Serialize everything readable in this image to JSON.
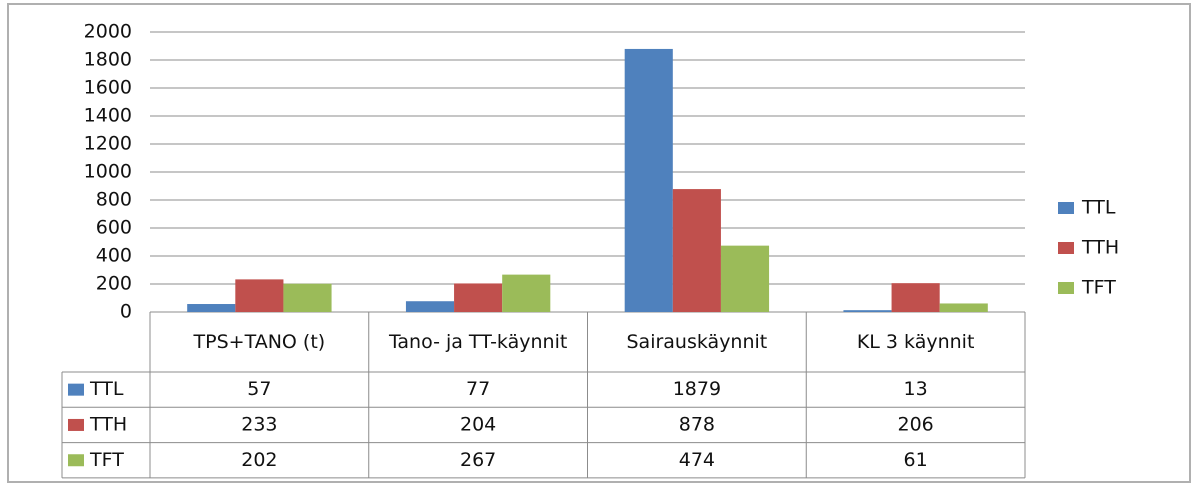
{
  "chart_data": {
    "type": "bar",
    "categories": [
      "TPS+TANO (t)",
      "Tano- ja TT-käynnit",
      "Sairauskäynnit",
      "KL 3 käynnit"
    ],
    "series": [
      {
        "name": "TTL",
        "color": "#4f81bd",
        "values": [
          57,
          77,
          1879,
          13
        ]
      },
      {
        "name": "TTH",
        "color": "#c0504d",
        "values": [
          233,
          204,
          878,
          206
        ]
      },
      {
        "name": "TFT",
        "color": "#9bbb59",
        "values": [
          202,
          267,
          474,
          61
        ]
      }
    ],
    "ylim": [
      0,
      2000
    ],
    "yticks": [
      0,
      200,
      400,
      600,
      800,
      1000,
      1200,
      1400,
      1600,
      1800,
      2000
    ],
    "grid": true,
    "legend": "right"
  }
}
